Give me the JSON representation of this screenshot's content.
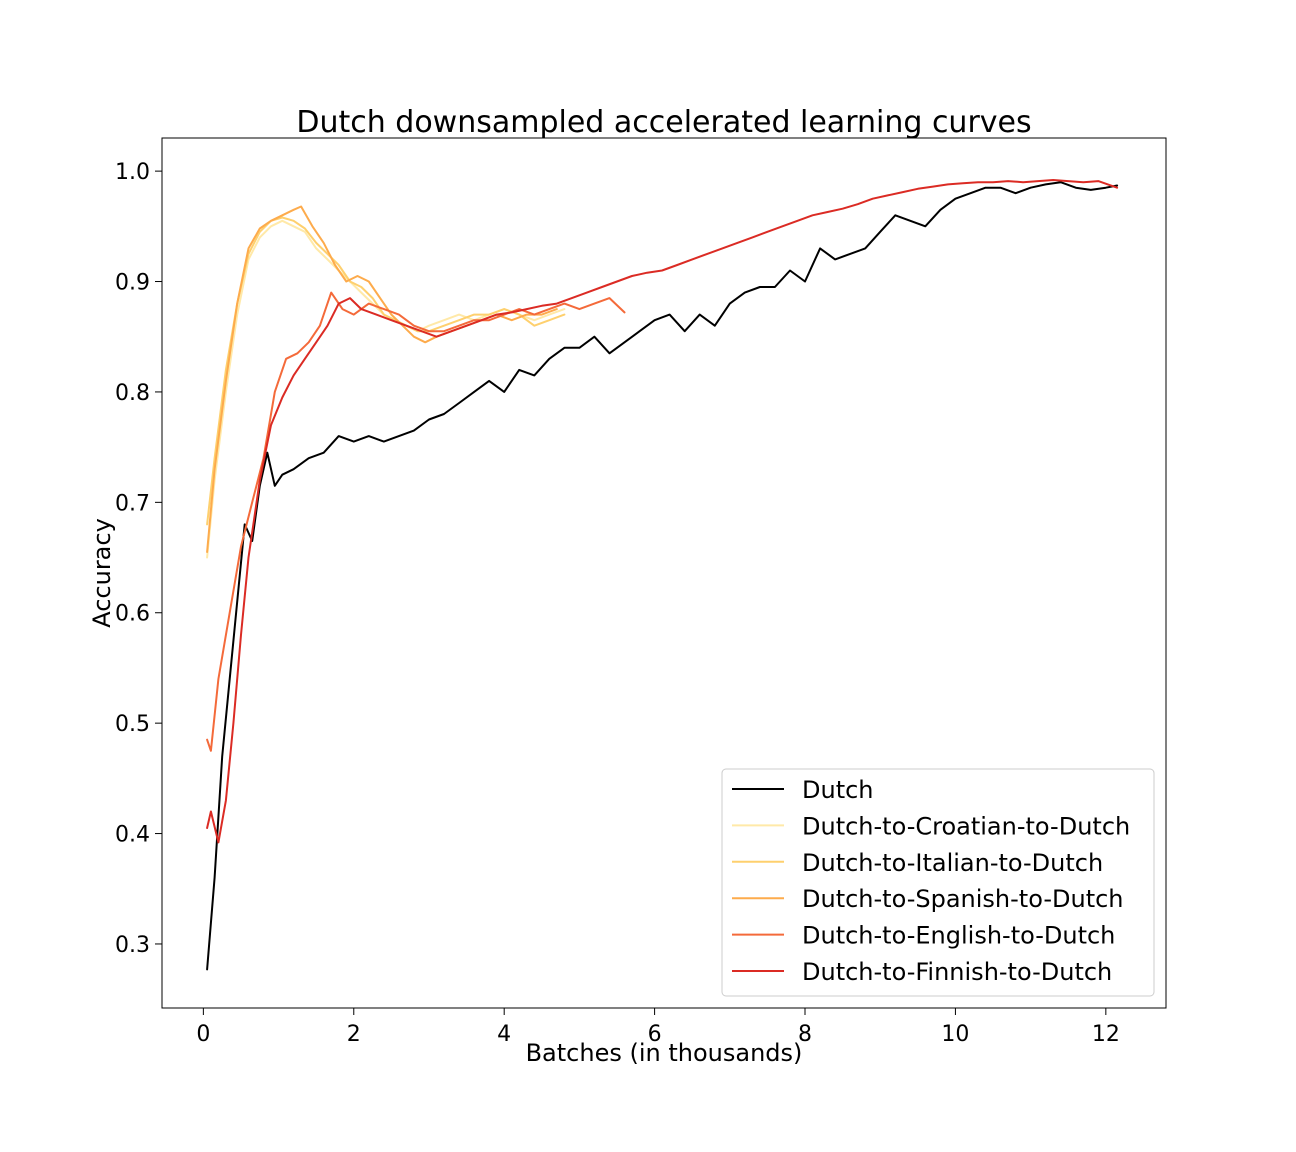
{
  "chart_data": {
    "type": "line",
    "title": "Dutch downsampled accelerated learning curves",
    "xlabel": "Batches (in thousands)",
    "ylabel": "Accuracy",
    "xlim": [
      -0.55,
      12.8
    ],
    "ylim": [
      0.242,
      1.03
    ],
    "xticks": [
      0,
      2,
      4,
      6,
      8,
      10,
      12
    ],
    "yticks": [
      0.3,
      0.4,
      0.5,
      0.6,
      0.7,
      0.8,
      0.9,
      1.0
    ],
    "grid": false,
    "legend_position": "lower-right",
    "series": [
      {
        "name": "Dutch",
        "color": "#000000",
        "x": [
          0.05,
          0.15,
          0.25,
          0.35,
          0.45,
          0.55,
          0.65,
          0.75,
          0.85,
          0.95,
          1.05,
          1.2,
          1.4,
          1.6,
          1.8,
          2.0,
          2.2,
          2.4,
          2.6,
          2.8,
          3.0,
          3.2,
          3.4,
          3.6,
          3.8,
          4.0,
          4.2,
          4.4,
          4.6,
          4.8,
          5.0,
          5.2,
          5.4,
          5.6,
          5.8,
          6.0,
          6.2,
          6.4,
          6.6,
          6.8,
          7.0,
          7.2,
          7.4,
          7.6,
          7.8,
          8.0,
          8.2,
          8.4,
          8.6,
          8.8,
          9.0,
          9.2,
          9.4,
          9.6,
          9.8,
          10.0,
          10.2,
          10.4,
          10.6,
          10.8,
          11.0,
          11.2,
          11.4,
          11.6,
          11.8,
          12.0,
          12.15
        ],
        "y": [
          0.277,
          0.36,
          0.47,
          0.54,
          0.61,
          0.68,
          0.665,
          0.715,
          0.745,
          0.715,
          0.725,
          0.73,
          0.74,
          0.745,
          0.76,
          0.755,
          0.76,
          0.755,
          0.76,
          0.765,
          0.775,
          0.78,
          0.79,
          0.8,
          0.81,
          0.8,
          0.82,
          0.815,
          0.83,
          0.84,
          0.84,
          0.85,
          0.835,
          0.845,
          0.855,
          0.865,
          0.87,
          0.855,
          0.87,
          0.86,
          0.88,
          0.89,
          0.895,
          0.895,
          0.91,
          0.9,
          0.93,
          0.92,
          0.925,
          0.93,
          0.945,
          0.96,
          0.955,
          0.95,
          0.965,
          0.975,
          0.98,
          0.985,
          0.985,
          0.98,
          0.985,
          0.988,
          0.99,
          0.985,
          0.983,
          0.985,
          0.987
        ]
      },
      {
        "name": "Dutch-to-Croatian-to-Dutch",
        "color": "#ffe9a8",
        "x": [
          0.05,
          0.15,
          0.3,
          0.45,
          0.6,
          0.75,
          0.9,
          1.05,
          1.2,
          1.35,
          1.5,
          1.65,
          1.8,
          1.95,
          2.1,
          2.25,
          2.4,
          2.55,
          2.7,
          2.85,
          3.0,
          3.2,
          3.4,
          3.6,
          3.8,
          4.0,
          4.2,
          4.4,
          4.6,
          4.8
        ],
        "y": [
          0.65,
          0.72,
          0.8,
          0.87,
          0.92,
          0.94,
          0.95,
          0.955,
          0.95,
          0.945,
          0.93,
          0.92,
          0.91,
          0.9,
          0.89,
          0.88,
          0.87,
          0.865,
          0.86,
          0.855,
          0.86,
          0.865,
          0.87,
          0.865,
          0.87,
          0.875,
          0.87,
          0.865,
          0.87,
          0.875
        ]
      },
      {
        "name": "Dutch-to-Italian-to-Dutch",
        "color": "#fed06e",
        "x": [
          0.05,
          0.15,
          0.3,
          0.45,
          0.6,
          0.75,
          0.9,
          1.05,
          1.2,
          1.35,
          1.5,
          1.65,
          1.8,
          1.95,
          2.1,
          2.25,
          2.4,
          2.55,
          2.7,
          2.85,
          3.0,
          3.2,
          3.4,
          3.6,
          3.8,
          4.0,
          4.2,
          4.4,
          4.6,
          4.8
        ],
        "y": [
          0.68,
          0.74,
          0.82,
          0.88,
          0.925,
          0.945,
          0.955,
          0.958,
          0.955,
          0.948,
          0.935,
          0.925,
          0.915,
          0.9,
          0.895,
          0.885,
          0.87,
          0.865,
          0.86,
          0.855,
          0.855,
          0.86,
          0.865,
          0.87,
          0.87,
          0.875,
          0.87,
          0.86,
          0.865,
          0.87
        ]
      },
      {
        "name": "Dutch-to-Spanish-to-Dutch",
        "color": "#fdab4c",
        "x": [
          0.05,
          0.15,
          0.3,
          0.45,
          0.6,
          0.75,
          0.9,
          1.05,
          1.2,
          1.3,
          1.45,
          1.6,
          1.75,
          1.9,
          2.05,
          2.2,
          2.35,
          2.5,
          2.65,
          2.8,
          2.95,
          3.1,
          3.3,
          3.5,
          3.7,
          3.9,
          4.1,
          4.3,
          4.5,
          4.7
        ],
        "y": [
          0.655,
          0.73,
          0.81,
          0.88,
          0.93,
          0.948,
          0.955,
          0.96,
          0.965,
          0.968,
          0.95,
          0.935,
          0.915,
          0.9,
          0.905,
          0.9,
          0.885,
          0.87,
          0.86,
          0.85,
          0.845,
          0.85,
          0.855,
          0.86,
          0.865,
          0.87,
          0.865,
          0.87,
          0.87,
          0.875
        ]
      },
      {
        "name": "Dutch-to-English-to-Dutch",
        "color": "#f46a3a",
        "x": [
          0.05,
          0.1,
          0.2,
          0.35,
          0.5,
          0.65,
          0.8,
          0.95,
          1.1,
          1.25,
          1.4,
          1.55,
          1.7,
          1.85,
          2.0,
          2.2,
          2.4,
          2.6,
          2.8,
          3.0,
          3.2,
          3.4,
          3.6,
          3.8,
          4.0,
          4.2,
          4.4,
          4.6,
          4.8,
          5.0,
          5.2,
          5.4,
          5.6
        ],
        "y": [
          0.485,
          0.475,
          0.54,
          0.6,
          0.66,
          0.7,
          0.74,
          0.8,
          0.83,
          0.835,
          0.845,
          0.86,
          0.89,
          0.875,
          0.87,
          0.88,
          0.875,
          0.87,
          0.86,
          0.855,
          0.855,
          0.86,
          0.865,
          0.865,
          0.87,
          0.875,
          0.87,
          0.875,
          0.88,
          0.875,
          0.88,
          0.885,
          0.872
        ]
      },
      {
        "name": "Dutch-to-Finnish-to-Dutch",
        "color": "#db2b24",
        "x": [
          0.05,
          0.1,
          0.2,
          0.3,
          0.4,
          0.5,
          0.6,
          0.75,
          0.9,
          1.05,
          1.2,
          1.35,
          1.5,
          1.65,
          1.8,
          1.95,
          2.1,
          2.3,
          2.5,
          2.7,
          2.9,
          3.1,
          3.3,
          3.5,
          3.7,
          3.9,
          4.1,
          4.3,
          4.5,
          4.7,
          4.9,
          5.1,
          5.3,
          5.5,
          5.7,
          5.9,
          6.1,
          6.3,
          6.5,
          6.7,
          6.9,
          7.1,
          7.3,
          7.5,
          7.7,
          7.9,
          8.1,
          8.3,
          8.5,
          8.7,
          8.9,
          9.1,
          9.3,
          9.5,
          9.7,
          9.9,
          10.1,
          10.3,
          10.5,
          10.7,
          10.9,
          11.1,
          11.3,
          11.5,
          11.7,
          11.9,
          12.15
        ],
        "y": [
          0.405,
          0.42,
          0.392,
          0.43,
          0.5,
          0.58,
          0.65,
          0.72,
          0.77,
          0.795,
          0.815,
          0.83,
          0.845,
          0.86,
          0.88,
          0.885,
          0.875,
          0.87,
          0.865,
          0.86,
          0.855,
          0.85,
          0.855,
          0.86,
          0.865,
          0.87,
          0.872,
          0.875,
          0.878,
          0.88,
          0.885,
          0.89,
          0.895,
          0.9,
          0.905,
          0.908,
          0.91,
          0.915,
          0.92,
          0.925,
          0.93,
          0.935,
          0.94,
          0.945,
          0.95,
          0.955,
          0.96,
          0.963,
          0.966,
          0.97,
          0.975,
          0.978,
          0.981,
          0.984,
          0.986,
          0.988,
          0.989,
          0.99,
          0.99,
          0.991,
          0.99,
          0.991,
          0.992,
          0.991,
          0.99,
          0.991,
          0.985
        ]
      }
    ]
  }
}
